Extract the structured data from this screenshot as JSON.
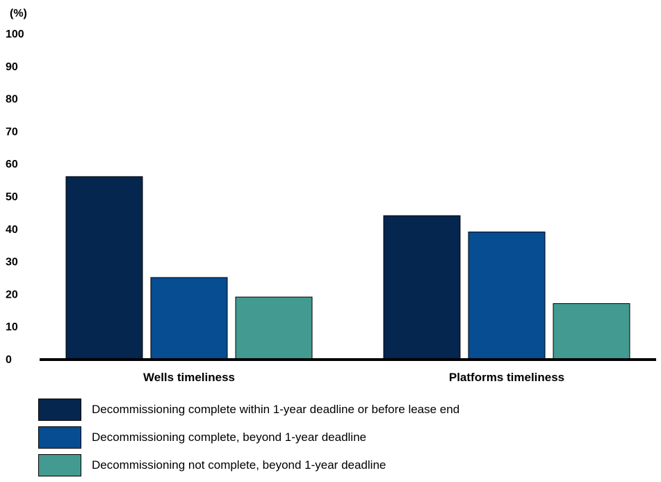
{
  "chart_data": {
    "type": "bar",
    "unit_label": "(%)",
    "categories": [
      "Wells timeliness",
      "Platforms timeliness"
    ],
    "series": [
      {
        "name": "Decommissioning complete within 1-year deadline or before lease end",
        "color": "#04264f",
        "values": [
          56,
          44
        ]
      },
      {
        "name": "Decommissioning complete, beyond 1-year deadline",
        "color": "#064d92",
        "values": [
          25,
          39
        ]
      },
      {
        "name": "Decommissioning not complete, beyond 1-year deadline",
        "color": "#429a90",
        "values": [
          19,
          17
        ]
      }
    ],
    "ylim": [
      0,
      100
    ],
    "yticks": [
      0,
      10,
      20,
      30,
      40,
      50,
      60,
      70,
      80,
      90,
      100
    ],
    "grid": false,
    "legend_position": "bottom"
  }
}
